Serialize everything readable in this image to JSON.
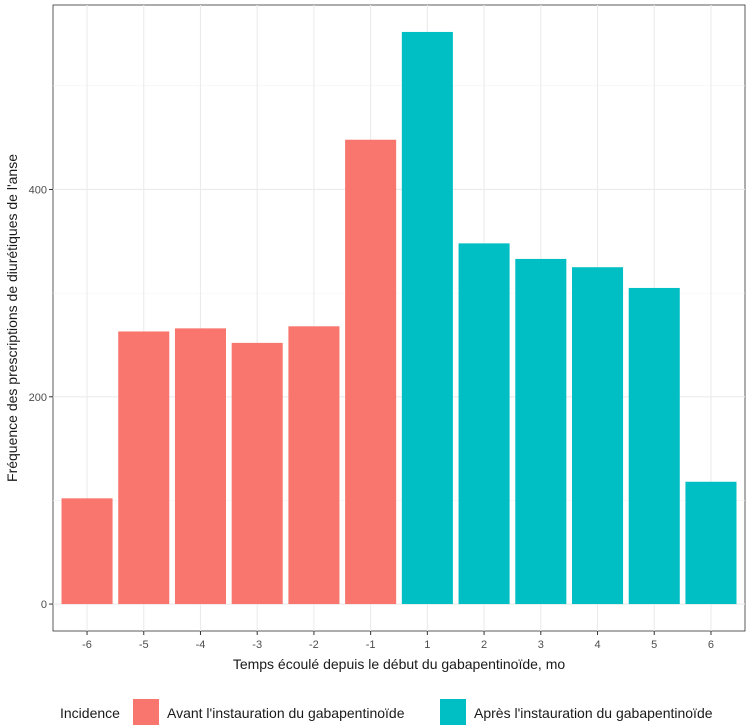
{
  "chart_data": {
    "type": "bar",
    "title": "",
    "xlabel": "Temps écoulé depuis le début du gabapentinoïde, mo",
    "ylabel": "Fréquence des prescriptions de diurétiques de l'anse",
    "categories": [
      "-6",
      "-5",
      "-4",
      "-3",
      "-2",
      "-1",
      "1",
      "2",
      "3",
      "4",
      "5",
      "6"
    ],
    "values": [
      102,
      263,
      266,
      252,
      268,
      448,
      552,
      348,
      333,
      325,
      305,
      118
    ],
    "groups": [
      "before",
      "before",
      "before",
      "before",
      "before",
      "before",
      "after",
      "after",
      "after",
      "after",
      "after",
      "after"
    ],
    "yticks": [
      0,
      200,
      400
    ],
    "ylim": [
      -26,
      578
    ],
    "grid": true,
    "legend": {
      "title": "Incidence",
      "position": "bottom",
      "items": [
        {
          "key": "before",
          "label": "Avant l'instauration du gabapentinoïde",
          "color": "#F8766D"
        },
        {
          "key": "after",
          "label": "Après l'instauration du gabapentinoïde",
          "color": "#00BFC4"
        }
      ]
    }
  }
}
